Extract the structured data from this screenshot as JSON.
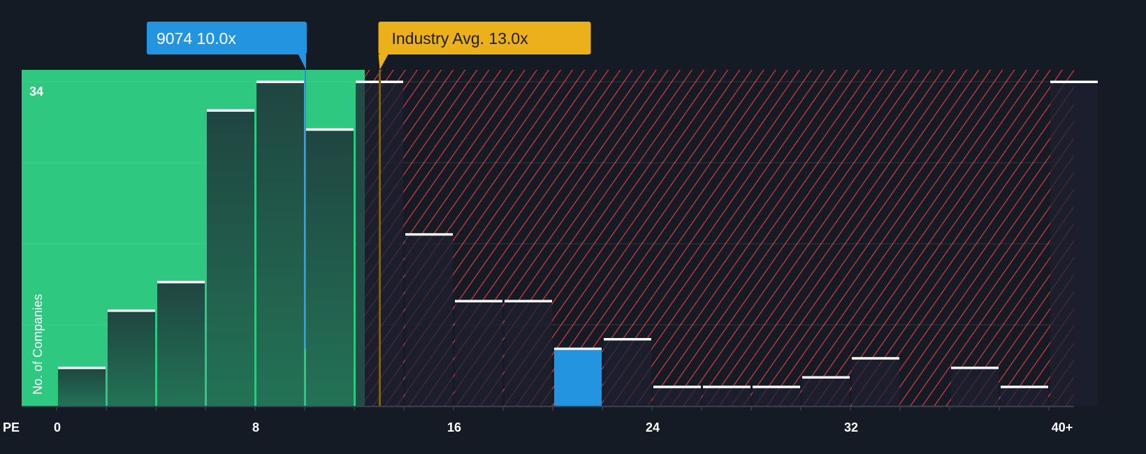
{
  "chart_data": {
    "type": "bar",
    "title": "",
    "xlabel": "PE",
    "ylabel": "No. of Companies",
    "ylim": [
      0,
      34
    ],
    "y_tick_labels": [
      "34"
    ],
    "x_tick_labels": [
      "0",
      "8",
      "16",
      "24",
      "32",
      "40+"
    ],
    "x_tick_values": [
      0,
      8,
      16,
      24,
      32,
      40
    ],
    "bin_width": 2,
    "bins": [
      0,
      2,
      4,
      6,
      8,
      10,
      12,
      14,
      16,
      18,
      20,
      22,
      24,
      26,
      28,
      30,
      32,
      34,
      36,
      38,
      40
    ],
    "values": [
      4,
      10,
      13,
      31,
      34,
      29,
      34,
      18,
      11,
      11,
      6,
      7,
      2,
      2,
      2,
      3,
      5,
      0,
      4,
      2,
      34
    ],
    "highlight_bin": 10,
    "company": {
      "label": "9074 10.0x",
      "pe": 10.0
    },
    "industry": {
      "label": "Industry Avg. 13.0x",
      "pe": 13.0
    },
    "fair_region_end_pe": 12.4,
    "grid": true
  },
  "colors": {
    "background": "#151b24",
    "fair_green": "#2ec880",
    "company_blue": "#2394e0",
    "industry_gold": "#ebb01a",
    "hatch_red": "#e03a3e"
  }
}
